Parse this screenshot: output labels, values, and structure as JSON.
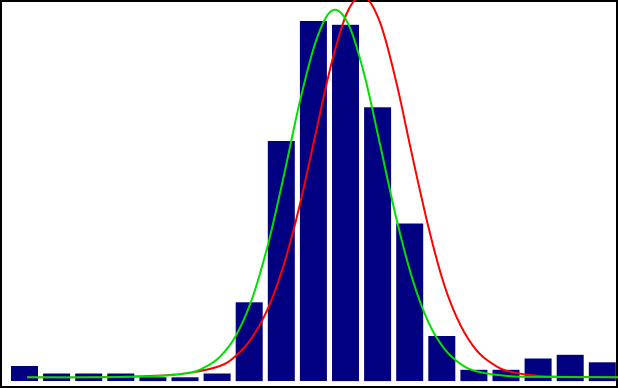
{
  "chart_data": {
    "type": "bar",
    "title": "",
    "xlabel": "",
    "ylabel": "",
    "ylim": [
      0,
      100
    ],
    "grid": false,
    "legend": "none",
    "bar_color": "#000080",
    "values": [
      4,
      2,
      2,
      2,
      1,
      1,
      2,
      21,
      64,
      96,
      95,
      73,
      42,
      12,
      3,
      3,
      6,
      7,
      5
    ],
    "curves": [
      {
        "color": "#ff0000",
        "points": [
          [
            0,
            1
          ],
          [
            2,
            1
          ],
          [
            4,
            1.4
          ],
          [
            5,
            2.1
          ],
          [
            6,
            4
          ],
          [
            6.5,
            6.7
          ],
          [
            7,
            11.5
          ],
          [
            7.5,
            19.3
          ],
          [
            8,
            31.1
          ],
          [
            8.5,
            47.1
          ],
          [
            9,
            66.4
          ],
          [
            9.5,
            85.2
          ],
          [
            10,
            98.8
          ],
          [
            10.5,
            102.5
          ],
          [
            11,
            95.5
          ],
          [
            11.5,
            79.8
          ],
          [
            12,
            60
          ],
          [
            12.5,
            41.2
          ],
          [
            13,
            25.5
          ],
          [
            13.5,
            14.9
          ],
          [
            14,
            8.2
          ],
          [
            14.5,
            4.6
          ],
          [
            15,
            2.6
          ],
          [
            16,
            1.3
          ],
          [
            17,
            1.1
          ],
          [
            18.5,
            1
          ]
        ]
      },
      {
        "color": "#00e000",
        "points": [
          [
            0,
            1
          ],
          [
            2,
            1
          ],
          [
            4,
            1.3
          ],
          [
            5,
            2.1
          ],
          [
            5.5,
            3.5
          ],
          [
            6,
            6.4
          ],
          [
            6.5,
            12
          ],
          [
            7,
            21.7
          ],
          [
            7.5,
            36.2
          ],
          [
            8,
            54.8
          ],
          [
            8.5,
            74.6
          ],
          [
            9,
            90.7
          ],
          [
            9.5,
            98.8
          ],
          [
            10,
            95.3
          ],
          [
            10.5,
            81.9
          ],
          [
            11,
            62.9
          ],
          [
            11.5,
            43.5
          ],
          [
            12,
            27.3
          ],
          [
            12.5,
            15.7
          ],
          [
            13,
            8.6
          ],
          [
            13.5,
            4.6
          ],
          [
            14,
            2.6
          ],
          [
            15,
            1.3
          ],
          [
            16,
            1.1
          ],
          [
            18.5,
            1
          ]
        ]
      }
    ]
  }
}
